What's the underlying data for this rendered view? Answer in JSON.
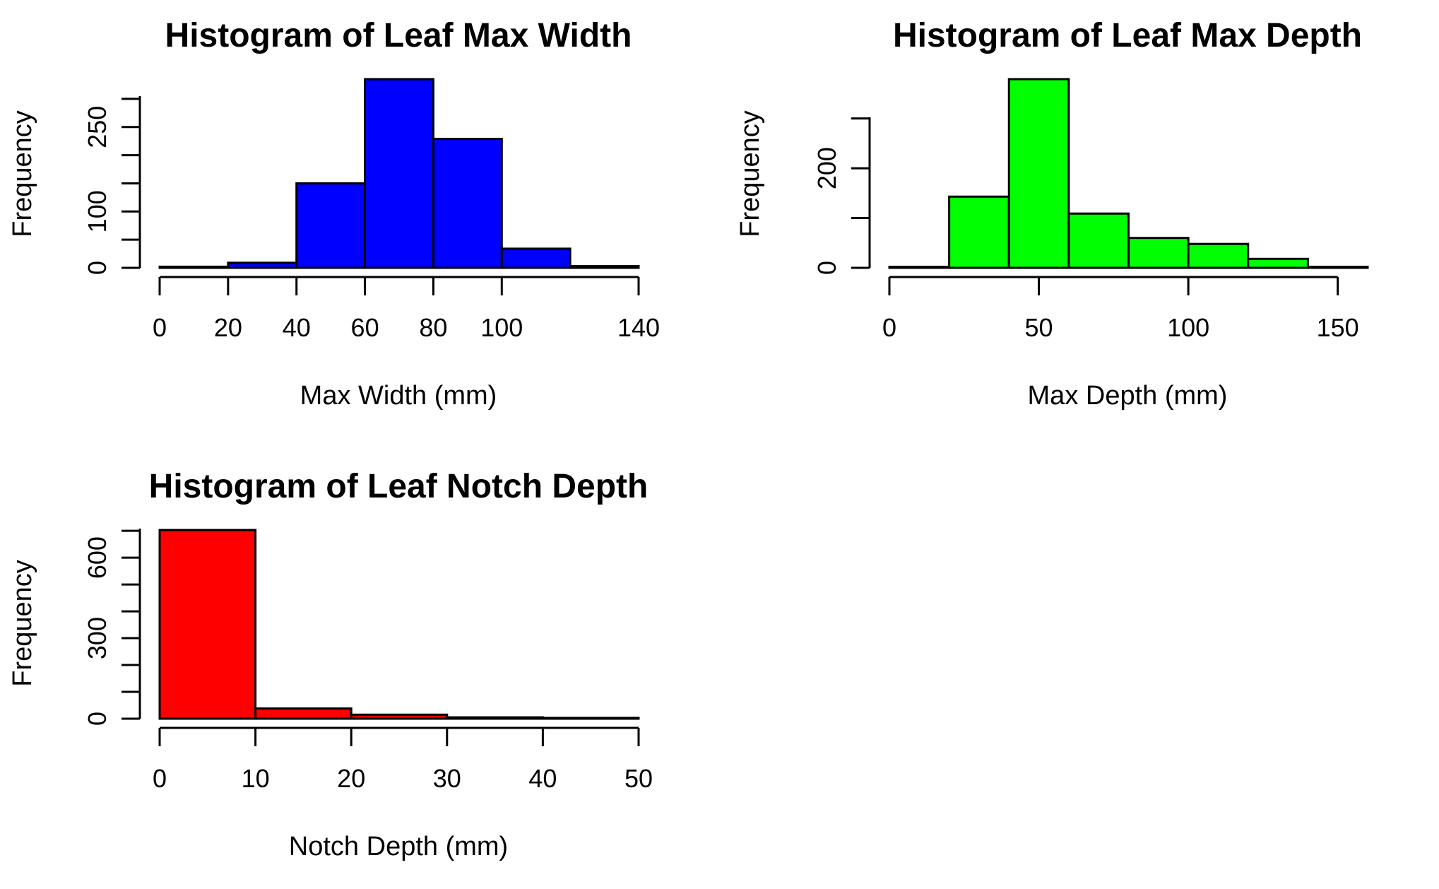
{
  "chart_data": [
    {
      "type": "bar",
      "title": "Histogram of Leaf Max Width",
      "xlabel": "Max Width (mm)",
      "ylabel": "Frequency",
      "bin_edges": [
        0,
        20,
        40,
        60,
        80,
        100,
        120,
        140
      ],
      "values": [
        2,
        9,
        150,
        335,
        229,
        34,
        3
      ],
      "xticks": [
        0,
        20,
        40,
        60,
        80,
        100,
        140
      ],
      "yticks": [
        0,
        100,
        250
      ],
      "ylim": [
        0,
        335
      ],
      "fill": "#0000FF",
      "grid": false,
      "legend": "none"
    },
    {
      "type": "bar",
      "title": "Histogram of Leaf Max Depth",
      "xlabel": "Max Depth (mm)",
      "ylabel": "Frequency",
      "bin_edges": [
        0,
        20,
        40,
        60,
        80,
        100,
        120,
        140,
        160
      ],
      "values": [
        2,
        143,
        379,
        109,
        60,
        48,
        18,
        2
      ],
      "xticks": [
        0,
        50,
        100,
        150
      ],
      "yticks": [
        0,
        200
      ],
      "ylim": [
        0,
        379
      ],
      "fill": "#00FF00",
      "grid": false,
      "legend": "none"
    },
    {
      "type": "bar",
      "title": "Histogram of Leaf Notch Depth",
      "xlabel": "Notch Depth (mm)",
      "ylabel": "Frequency",
      "bin_edges": [
        0,
        10,
        20,
        30,
        40,
        50
      ],
      "values": [
        703,
        38,
        15,
        5,
        3
      ],
      "xticks": [
        0,
        10,
        20,
        30,
        40,
        50
      ],
      "yticks": [
        0,
        300,
        600
      ],
      "ylim": [
        0,
        703
      ],
      "fill": "#FF0000",
      "grid": false,
      "legend": "none"
    }
  ]
}
